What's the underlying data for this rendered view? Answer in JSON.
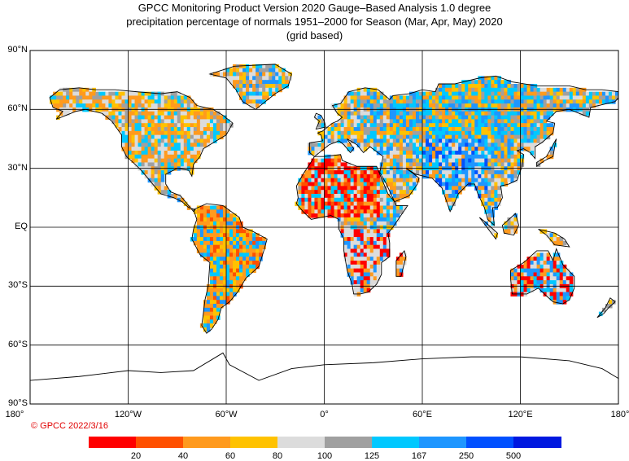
{
  "title": {
    "line1": "GPCC Monitoring Product Version 2020 Gauge–Based Analysis 1.0 degree",
    "line2": "precipitation percentage of normals 1951–2000 for Season (Mar, Apr, May) 2020",
    "line3": "(grid based)"
  },
  "axes": {
    "lat_labels": [
      "90°N",
      "60°N",
      "30°N",
      "EQ",
      "30°S",
      "60°S",
      "90°S"
    ],
    "lat_values": [
      90,
      60,
      30,
      0,
      -30,
      -60,
      -90
    ],
    "lon_labels": [
      "180°",
      "120°W",
      "60°W",
      "0°",
      "60°E",
      "120°E",
      "180°"
    ],
    "lon_values": [
      -180,
      -120,
      -60,
      0,
      60,
      120,
      180
    ]
  },
  "copyright": "© GPCC 2022/3/16",
  "legend": {
    "colors": [
      "#ff0000",
      "#ff5000",
      "#ff9a1e",
      "#ffc200",
      "#dcdcdc",
      "#a0a0a0",
      "#00c8ff",
      "#1e96ff",
      "#0050ff",
      "#0018e0"
    ],
    "labels": [
      "20",
      "40",
      "60",
      "80",
      "100",
      "125",
      "167",
      "250",
      "500"
    ]
  },
  "map_colors": {
    "ocean": "#ffffff",
    "coast": "#000000",
    "grid": "#000000",
    "no_data": "#ffffff"
  }
}
